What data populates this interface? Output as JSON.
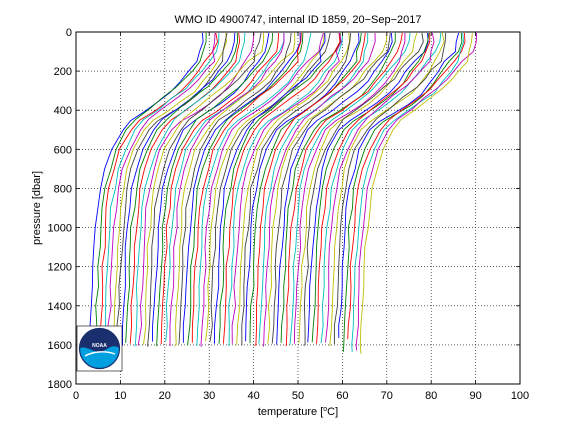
{
  "chart_data": {
    "type": "line",
    "title": "WMO ID 4900747, internal ID 1859, 20−Sep−2017",
    "xlabel_prefix": "temperature [",
    "xlabel_unit": "C]",
    "xlabel_degree": "o",
    "ylabel": "pressure [dbar]",
    "xlim": [
      0,
      100
    ],
    "ylim": [
      1800,
      0
    ],
    "y_reversed": true,
    "grid": true,
    "grid_style": "dotted",
    "xticks": [
      0,
      10,
      20,
      30,
      40,
      50,
      60,
      70,
      80,
      90,
      100
    ],
    "yticks": [
      0,
      200,
      400,
      600,
      800,
      1000,
      1200,
      1400,
      1600,
      1800
    ],
    "xtick_labels": [
      "0",
      "10",
      "20",
      "30",
      "40",
      "50",
      "60",
      "70",
      "80",
      "90",
      "100"
    ],
    "ytick_labels": [
      "0",
      "200",
      "400",
      "600",
      "800",
      "1000",
      "1200",
      "1400",
      "1600",
      "1800"
    ],
    "profile_offset_step_degC": 1,
    "profile_count": 62,
    "series_colors": [
      "#0000ff",
      "#008000",
      "#ff0000",
      "#00bfbf",
      "#bf00bf",
      "#bfbf00",
      "#404040"
    ],
    "base_profile": {
      "pressure": [
        5,
        50,
        100,
        150,
        200,
        250,
        300,
        350,
        400,
        450,
        500,
        600,
        700,
        800,
        900,
        1000,
        1100,
        1200,
        1300,
        1400,
        1500,
        1600
      ],
      "temperature": [
        29.0,
        28.9,
        28.2,
        27.0,
        25.2,
        23.6,
        21.5,
        18.6,
        15.6,
        12.4,
        10.4,
        8.0,
        6.6,
        5.6,
        5.0,
        4.6,
        4.3,
        4.05,
        3.85,
        3.65,
        3.45,
        3.3
      ]
    },
    "logo": "NOAA"
  }
}
